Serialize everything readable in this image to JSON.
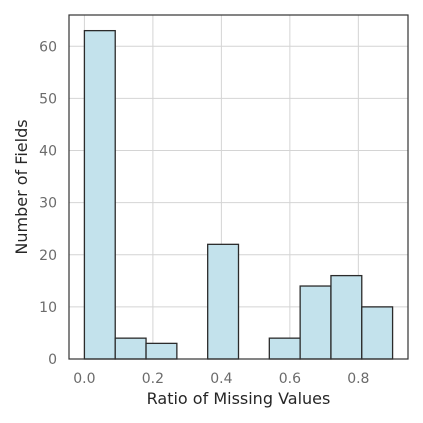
{
  "chart_data": {
    "type": "bar",
    "title": "",
    "xlabel": "Ratio of Missing Values",
    "ylabel": "Number of Fields",
    "xlim": [
      -0.045,
      0.945
    ],
    "ylim": [
      0,
      66
    ],
    "xticks": [
      0.0,
      0.2,
      0.4,
      0.6,
      0.8
    ],
    "xtick_labels": [
      "0.0",
      "0.2",
      "0.4",
      "0.6",
      "0.8"
    ],
    "yticks": [
      0,
      10,
      20,
      30,
      40,
      50,
      60
    ],
    "ytick_labels": [
      "0",
      "10",
      "20",
      "30",
      "40",
      "50",
      "60"
    ],
    "grid": true,
    "bins": [
      {
        "x0": 0.0,
        "x1": 0.09,
        "count": 63
      },
      {
        "x0": 0.09,
        "x1": 0.18,
        "count": 4
      },
      {
        "x0": 0.18,
        "x1": 0.27,
        "count": 3
      },
      {
        "x0": 0.27,
        "x1": 0.36,
        "count": 0
      },
      {
        "x0": 0.36,
        "x1": 0.45,
        "count": 22
      },
      {
        "x0": 0.45,
        "x1": 0.54,
        "count": 0
      },
      {
        "x0": 0.54,
        "x1": 0.63,
        "count": 4
      },
      {
        "x0": 0.63,
        "x1": 0.72,
        "count": 14
      },
      {
        "x0": 0.72,
        "x1": 0.81,
        "count": 16
      },
      {
        "x0": 0.81,
        "x1": 0.9,
        "count": 10
      }
    ],
    "colors": {
      "bar_fill": "#c3e2ec",
      "bar_edge": "#2b2b2b"
    }
  }
}
